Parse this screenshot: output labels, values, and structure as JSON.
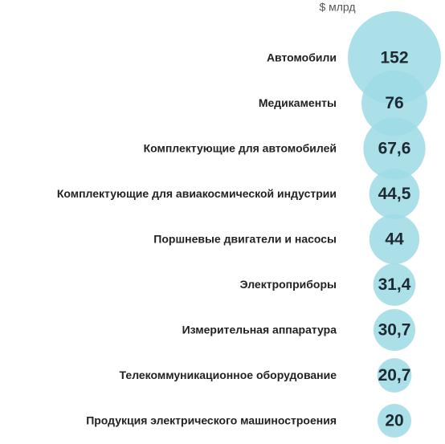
{
  "chart_data": {
    "type": "bubble",
    "unit_label": "$ млрд",
    "categories": [
      "Автомобили",
      "Медикаменты",
      "Комплектующие для автомобилей",
      "Комплектующие для авиакосмической индустрии",
      "Поршневые двигатели и насосы",
      "Электроприборы",
      "Измерительная аппаратура",
      "Телекоммуникационное оборудование",
      "Продукция электрического машиностроения"
    ],
    "values": [
      152,
      76,
      67.6,
      44.5,
      44,
      31.4,
      30.7,
      20.7,
      20
    ],
    "value_labels": [
      "152",
      "76",
      "67,6",
      "44,5",
      "44",
      "31,4",
      "30,7",
      "20,7",
      "20"
    ],
    "color": "#9ddbe5"
  }
}
